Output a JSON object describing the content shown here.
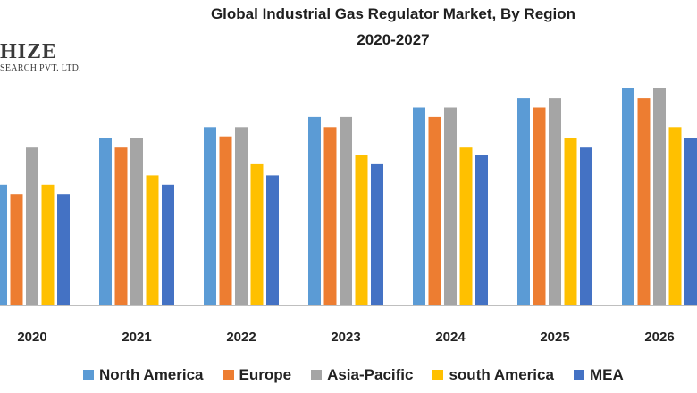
{
  "logo": {
    "main": "HIZE",
    "sub": "SEARCH PVT. LTD."
  },
  "chart_data": {
    "type": "bar",
    "title": "Global Industrial Gas Regulator Market, By Region",
    "subtitle": "2020-2027",
    "xlabel": "",
    "ylabel": "",
    "grid": false,
    "y_axis_visible": false,
    "ylim": [
      0,
      24
    ],
    "legend_position": "bottom",
    "categories": [
      "2020",
      "2021",
      "2022",
      "2023",
      "2024",
      "2025",
      "2026"
    ],
    "series": [
      {
        "name": "North America",
        "color": "#5b9bd5",
        "values": [
          13.0,
          18.0,
          19.2,
          20.3,
          21.3,
          22.3,
          23.4
        ]
      },
      {
        "name": "Europe",
        "color": "#ed7d31",
        "values": [
          12.0,
          17.0,
          18.2,
          19.2,
          20.3,
          21.3,
          22.3
        ]
      },
      {
        "name": "Asia-Pacific",
        "color": "#a5a5a5",
        "values": [
          17.0,
          18.0,
          19.2,
          20.3,
          21.3,
          22.3,
          23.4
        ]
      },
      {
        "name": "south  America",
        "color": "#ffc000",
        "values": [
          13.0,
          14.0,
          15.2,
          16.2,
          17.0,
          18.0,
          19.2
        ]
      },
      {
        "name": "MEA",
        "color": "#4472c4",
        "values": [
          12.0,
          13.0,
          14.0,
          15.2,
          16.2,
          17.0,
          18.0
        ]
      }
    ]
  }
}
